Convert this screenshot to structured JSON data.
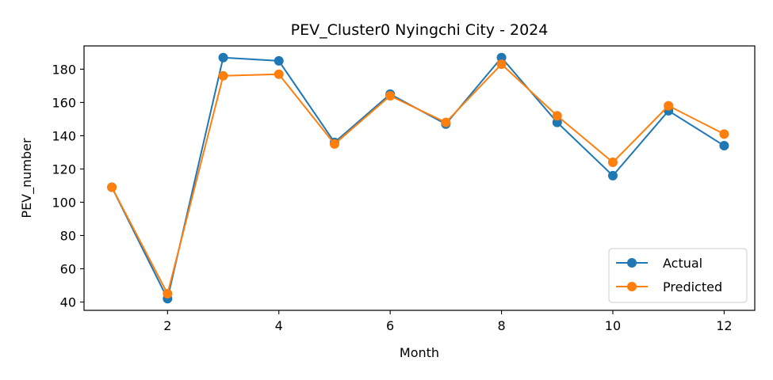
{
  "chart_data": {
    "type": "line",
    "title": "PEV_Cluster0 Nyingchi City - 2024",
    "xlabel": "Month",
    "ylabel": "PEV_number",
    "x": [
      1,
      2,
      3,
      4,
      5,
      6,
      7,
      8,
      9,
      10,
      11,
      12
    ],
    "xlim": [
      0.5,
      12.55
    ],
    "ylim": [
      35,
      194
    ],
    "xticks": [
      2,
      4,
      6,
      8,
      10,
      12
    ],
    "yticks": [
      40,
      60,
      80,
      100,
      120,
      140,
      160,
      180
    ],
    "legend_position": "lower-right",
    "series": [
      {
        "name": "Actual",
        "color": "#1f77b4",
        "values": [
          109,
          42,
          187,
          185,
          136,
          165,
          147,
          187,
          148,
          116,
          155,
          134
        ]
      },
      {
        "name": "Predicted",
        "color": "#ff7f0e",
        "values": [
          109,
          45,
          176,
          177,
          135,
          164,
          148,
          183,
          152,
          124,
          158,
          141
        ]
      }
    ]
  }
}
